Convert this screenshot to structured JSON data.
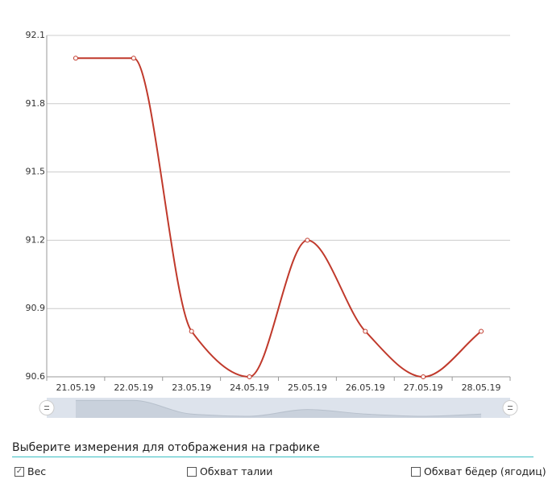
{
  "chart_data": {
    "type": "line",
    "categories": [
      "21.05.19",
      "22.05.19",
      "23.05.19",
      "24.05.19",
      "25.05.19",
      "26.05.19",
      "27.05.19",
      "28.05.19"
    ],
    "series": [
      {
        "name": "Вес",
        "color": "#c0392b",
        "values": [
          92.0,
          92.0,
          90.8,
          90.6,
          91.2,
          90.8,
          90.6,
          90.8
        ]
      }
    ],
    "ylim": [
      90.6,
      92.1
    ],
    "yticks": [
      90.6,
      90.9,
      91.2,
      91.5,
      91.8,
      92.1
    ],
    "grid": true,
    "smooth": true
  },
  "panel": {
    "title": "Выберите измерения для отображения на графике",
    "options": [
      {
        "label": "Вес",
        "checked": true
      },
      {
        "label": "Обхват талии",
        "checked": false
      },
      {
        "label": "Обхват бёдер (ягодиц)",
        "checked": false
      }
    ]
  }
}
